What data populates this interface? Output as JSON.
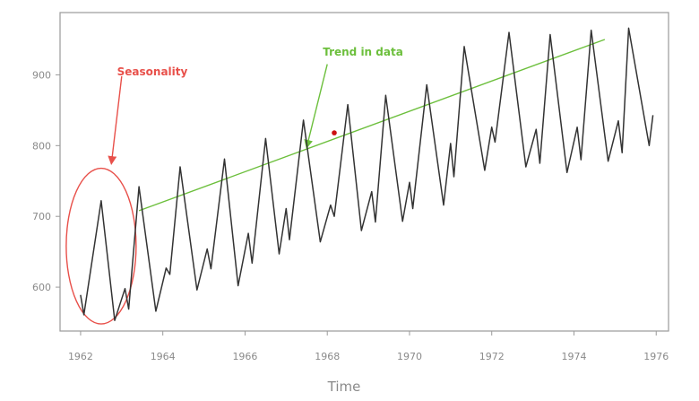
{
  "chart_data": {
    "type": "line",
    "title": "",
    "xlabel": "Time",
    "ylabel": "",
    "xlim": [
      1961.5,
      1976.3
    ],
    "ylim": [
      538,
      988
    ],
    "x_ticks": [
      1962,
      1964,
      1966,
      1968,
      1970,
      1972,
      1974,
      1976
    ],
    "y_ticks": [
      600,
      700,
      800,
      900
    ],
    "grid": false,
    "series": [
      {
        "values": [
          [
            1962.0,
            589
          ],
          [
            1962.08,
            561
          ],
          [
            1962.5,
            722
          ],
          [
            1962.83,
            553
          ],
          [
            1963.08,
            598
          ],
          [
            1963.17,
            569
          ],
          [
            1963.42,
            742
          ],
          [
            1963.83,
            566
          ],
          [
            1964.08,
            627
          ],
          [
            1964.17,
            618
          ],
          [
            1964.42,
            770
          ],
          [
            1964.83,
            596
          ],
          [
            1965.08,
            654
          ],
          [
            1965.17,
            626
          ],
          [
            1965.5,
            781
          ],
          [
            1965.83,
            602
          ],
          [
            1966.08,
            676
          ],
          [
            1966.17,
            634
          ],
          [
            1966.5,
            810
          ],
          [
            1966.83,
            647
          ],
          [
            1967.0,
            711
          ],
          [
            1967.08,
            667
          ],
          [
            1967.42,
            836
          ],
          [
            1967.83,
            664
          ],
          [
            1968.08,
            716
          ],
          [
            1968.17,
            700
          ],
          [
            1968.5,
            858
          ],
          [
            1968.83,
            680
          ],
          [
            1969.08,
            735
          ],
          [
            1969.17,
            692
          ],
          [
            1969.42,
            871
          ],
          [
            1969.83,
            693
          ],
          [
            1970.0,
            748
          ],
          [
            1970.08,
            711
          ],
          [
            1970.42,
            886
          ],
          [
            1970.83,
            716
          ],
          [
            1971.0,
            803
          ],
          [
            1971.08,
            756
          ],
          [
            1971.33,
            940
          ],
          [
            1971.83,
            765
          ],
          [
            1972.0,
            826
          ],
          [
            1972.08,
            805
          ],
          [
            1972.42,
            960
          ],
          [
            1972.83,
            770
          ],
          [
            1973.08,
            823
          ],
          [
            1973.17,
            775
          ],
          [
            1973.42,
            957
          ],
          [
            1973.83,
            762
          ],
          [
            1974.08,
            826
          ],
          [
            1974.17,
            780
          ],
          [
            1974.42,
            963
          ],
          [
            1974.83,
            778
          ],
          [
            1975.08,
            835
          ],
          [
            1975.17,
            790
          ],
          [
            1975.33,
            966
          ],
          [
            1975.83,
            800
          ],
          [
            1975.92,
            843
          ]
        ],
        "color": "#333333"
      }
    ],
    "annotations": {
      "seasonality": {
        "text": "Seasonality",
        "color": "#e8504a",
        "circle": {
          "x_center": 1962.5,
          "y_center": 658,
          "x_radius": 0.85,
          "y_radius": 110
        },
        "arrow_from": [
          1963.0,
          898
        ],
        "arrow_to": [
          1962.75,
          775
        ]
      },
      "trend": {
        "text": "Trend in data",
        "color": "#6cbf3c",
        "line_start": [
          1963.42,
          708
        ],
        "line_end": [
          1974.75,
          950
        ],
        "arrow_from": [
          1968.0,
          915
        ],
        "arrow_to": [
          1967.5,
          798
        ]
      },
      "marker": {
        "x": 1968.17,
        "y": 818,
        "color": "#cc1111"
      }
    }
  }
}
